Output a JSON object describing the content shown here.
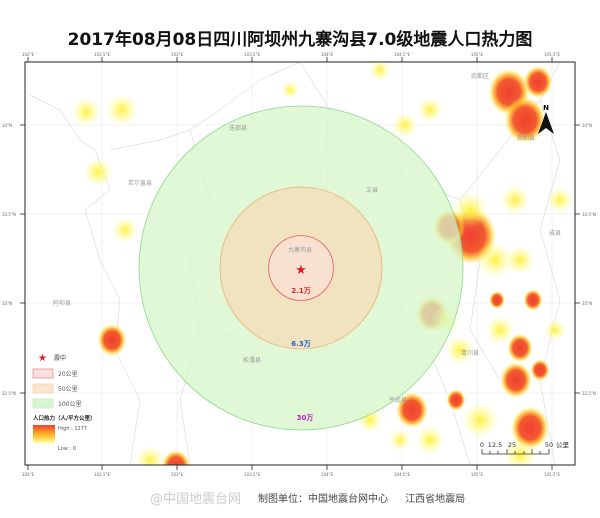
{
  "title": "2017年08月08日四川阿坝州九寨沟县7.0级地震人口热力图",
  "longitude_ticks": [
    "102°E",
    "102.5°E",
    "103°E",
    "103.5°E",
    "104°E",
    "104.5°E",
    "105°E",
    "105.5°E"
  ],
  "latitude_ticks": [
    "34°N",
    "33.5°N",
    "33°N",
    "32.5°N"
  ],
  "epicenter_label": "九寨沟县",
  "rings": [
    {
      "radius_km": 20,
      "population": "2.1万",
      "color": "#e05a5a",
      "label_color": "#d22"
    },
    {
      "radius_km": 50,
      "population": "6.3万",
      "color": "#e8b070",
      "label_color": "#1a5fd0"
    },
    {
      "radius_km": 100,
      "population": "30万",
      "color": "#8cd88c",
      "label_color": "#c020c0"
    }
  ],
  "places": [
    "若尔盖县",
    "迭部县",
    "文县",
    "平武县",
    "松潘县",
    "阿坝县",
    "西和县",
    "成县",
    "武都区",
    "青川县"
  ],
  "legend": {
    "epicenter": "震中",
    "ring20": "20公里",
    "ring50": "50公里",
    "ring100": "100公里",
    "heat_title": "人口热力（人/平方公里）",
    "high": "High : 1277",
    "low": "Low : 0"
  },
  "scale_bar": {
    "labels": [
      "0",
      "12.5",
      "25",
      "50"
    ],
    "unit": "公里"
  },
  "north_label": "N",
  "credits": {
    "watermark": "@中国地震台网",
    "source": "制图单位：中国地震台网中心",
    "org": "江西省地震局"
  }
}
